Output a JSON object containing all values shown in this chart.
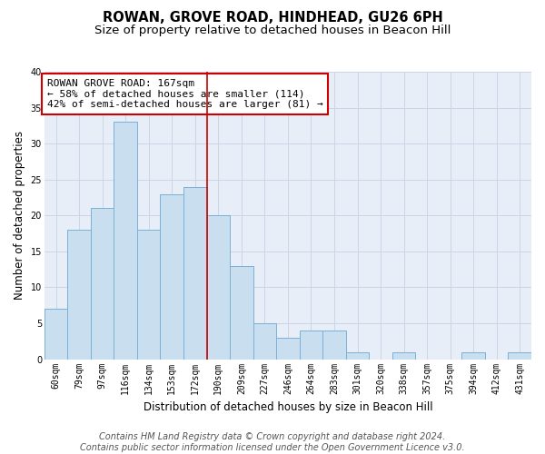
{
  "title": "ROWAN, GROVE ROAD, HINDHEAD, GU26 6PH",
  "subtitle": "Size of property relative to detached houses in Beacon Hill",
  "xlabel": "Distribution of detached houses by size in Beacon Hill",
  "ylabel": "Number of detached properties",
  "categories": [
    "60sqm",
    "79sqm",
    "97sqm",
    "116sqm",
    "134sqm",
    "153sqm",
    "172sqm",
    "190sqm",
    "209sqm",
    "227sqm",
    "246sqm",
    "264sqm",
    "283sqm",
    "301sqm",
    "320sqm",
    "338sqm",
    "357sqm",
    "375sqm",
    "394sqm",
    "412sqm",
    "431sqm"
  ],
  "values": [
    7,
    18,
    21,
    33,
    18,
    23,
    24,
    20,
    13,
    5,
    3,
    4,
    4,
    1,
    0,
    1,
    0,
    0,
    1,
    0,
    1
  ],
  "bar_color": "#c9dff0",
  "bar_edge_color": "#7ab0d8",
  "vline_x_index": 6.5,
  "vline_color": "#cc0000",
  "annotation_box_text": "ROWAN GROVE ROAD: 167sqm\n← 58% of detached houses are smaller (114)\n42% of semi-detached houses are larger (81) →",
  "annotation_box_color": "#cc0000",
  "ylim": [
    0,
    40
  ],
  "yticks": [
    0,
    5,
    10,
    15,
    20,
    25,
    30,
    35,
    40
  ],
  "grid_color": "#ccd5e8",
  "background_color": "#e8eef8",
  "footer_line1": "Contains HM Land Registry data © Crown copyright and database right 2024.",
  "footer_line2": "Contains public sector information licensed under the Open Government Licence v3.0.",
  "title_fontsize": 10.5,
  "subtitle_fontsize": 9.5,
  "xlabel_fontsize": 8.5,
  "ylabel_fontsize": 8.5,
  "tick_fontsize": 7,
  "annotation_fontsize": 8,
  "footer_fontsize": 7
}
